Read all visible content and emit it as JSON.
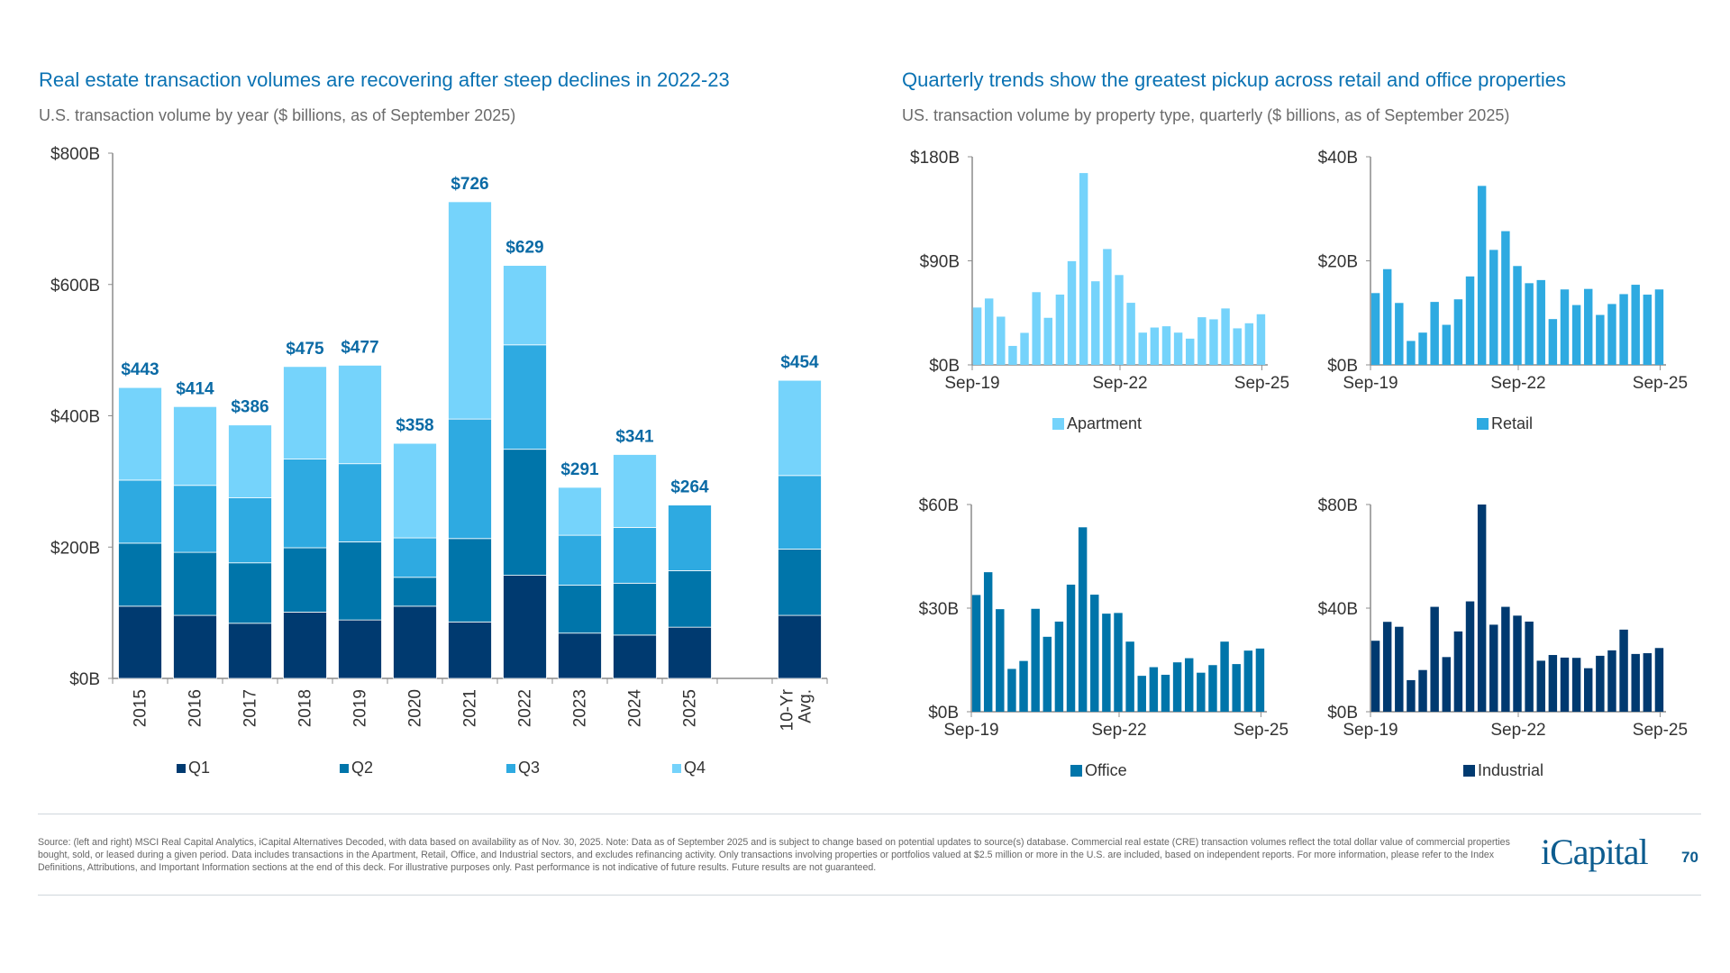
{
  "left": {
    "title": "Real estate transaction volumes are recovering after steep declines in 2022-23",
    "subtitle": "U.S. transaction volume by year ($ billions, as of September 2025)"
  },
  "right": {
    "title": "Quarterly trends show the greatest pickup across retail and office properties",
    "subtitle": "US. transaction volume by property type, quarterly ($ billions, as of September 2025)"
  },
  "chart_data": [
    {
      "type": "bar",
      "stacked": true,
      "categories": [
        "2015",
        "2016",
        "2017",
        "2018",
        "2019",
        "2020",
        "2021",
        "2022",
        "2023",
        "2024",
        "2025",
        "",
        "10-Yr Avg."
      ],
      "series": [
        {
          "name": "Q1",
          "color": "#003a70",
          "values": [
            110,
            96,
            84,
            101,
            89,
            110,
            86,
            157,
            69,
            66,
            78,
            null,
            96
          ]
        },
        {
          "name": "Q2",
          "color": "#0075aa",
          "values": [
            96,
            96,
            92,
            98,
            119,
            44,
            127,
            192,
            73,
            79,
            86,
            null,
            101
          ]
        },
        {
          "name": "Q3",
          "color": "#2eaae1",
          "values": [
            96,
            102,
            99,
            135,
            119,
            60,
            182,
            159,
            76,
            85,
            100,
            null,
            112
          ]
        },
        {
          "name": "Q4",
          "color": "#75d3fb",
          "values": [
            141,
            120,
            111,
            141,
            150,
            144,
            331,
            121,
            73,
            111,
            0,
            null,
            145
          ]
        }
      ],
      "totals": [
        "$443",
        "$414",
        "$386",
        "$475",
        "$477",
        "$358",
        "$726",
        "$629",
        "$291",
        "$341",
        "$264",
        "",
        "$454"
      ],
      "ylim": [
        0,
        800
      ],
      "yticks": [
        "$0B",
        "$200B",
        "$400B",
        "$600B",
        "$800B"
      ],
      "ytick_values": [
        0,
        200,
        400,
        600,
        800
      ],
      "legend": "bottom",
      "grid": false
    },
    {
      "type": "bar",
      "series": [
        {
          "name": "Apartment",
          "color": "#75d3fb",
          "values": [
            49.6,
            57.4,
            41.7,
            16.4,
            27.7,
            62.9,
            40.7,
            60.8,
            89.7,
            165.9,
            72.3,
            100.2,
            77.7,
            53.7,
            27.9,
            32.3,
            33.4,
            27.9,
            22.7,
            41.2,
            39.4,
            48.8,
            31.6,
            36.0,
            43.8
          ]
        }
      ],
      "xticks": [
        "Sep-19",
        "Sep-22",
        "Sep-25"
      ],
      "ylim": [
        0,
        180
      ],
      "yticks": [
        "$0B",
        "$90B",
        "$180B"
      ],
      "ytick_values": [
        0,
        90,
        180
      ],
      "legend": "bottom",
      "grid": false
    },
    {
      "type": "bar",
      "series": [
        {
          "name": "Retail",
          "color": "#2eaae1",
          "values": [
            13.8,
            18.4,
            11.9,
            4.6,
            6.2,
            12.1,
            7.7,
            12.6,
            17.0,
            34.4,
            22.1,
            25.7,
            19.0,
            15.7,
            16.3,
            8.8,
            14.5,
            11.5,
            14.6,
            9.6,
            11.7,
            13.6,
            15.4,
            13.5,
            14.5
          ]
        }
      ],
      "xticks": [
        "Sep-19",
        "Sep-22",
        "Sep-25"
      ],
      "ylim": [
        0,
        40
      ],
      "yticks": [
        "$0B",
        "$20B",
        "$40B"
      ],
      "ytick_values": [
        0,
        20,
        40
      ],
      "legend": "bottom",
      "grid": false
    },
    {
      "type": "bar",
      "series": [
        {
          "name": "Office",
          "color": "#0075aa",
          "values": [
            33.8,
            40.4,
            29.7,
            12.4,
            14.7,
            29.8,
            21.7,
            26.1,
            36.8,
            53.4,
            33.9,
            28.4,
            28.6,
            20.3,
            10.4,
            12.9,
            10.7,
            14.3,
            15.5,
            11.3,
            13.5,
            20.3,
            13.8,
            17.7,
            18.3
          ]
        }
      ],
      "xticks": [
        "Sep-19",
        "Sep-22",
        "Sep-25"
      ],
      "ylim": [
        0,
        60
      ],
      "yticks": [
        "$0B",
        "$30B",
        "$60B"
      ],
      "ytick_values": [
        0,
        30,
        60
      ],
      "legend": "bottom",
      "grid": false
    },
    {
      "type": "bar",
      "series": [
        {
          "name": "Industrial",
          "color": "#003a70",
          "values": [
            27.4,
            34.7,
            32.8,
            12.2,
            16.1,
            40.5,
            21.1,
            31.0,
            42.6,
            80.0,
            33.6,
            40.5,
            37.1,
            34.8,
            19.7,
            21.9,
            20.9,
            20.8,
            16.8,
            21.6,
            23.7,
            31.7,
            22.3,
            22.6,
            24.6
          ]
        }
      ],
      "xticks": [
        "Sep-19",
        "Sep-22",
        "Sep-25"
      ],
      "ylim": [
        0,
        80
      ],
      "yticks": [
        "$0B",
        "$40B",
        "$80B"
      ],
      "ytick_values": [
        0,
        40,
        80
      ],
      "legend": "bottom",
      "grid": false
    }
  ],
  "colors": {
    "title": "#0a72b3",
    "data_label": "#0a6aa5"
  },
  "footnote": "Source: (left and right) MSCI Real Capital Analytics, iCapital Alternatives Decoded, with data based on availability as of Nov. 30, 2025. Note: Data as of September 2025 and is subject to change based on potential updates to source(s) database. Commercial real estate (CRE) transaction volumes reflect the total dollar value of commercial properties bought, sold, or leased during a given period. Data includes transactions in the Apartment, Retail, Office, and Industrial sectors, and excludes refinancing activity. Only transactions involving properties or portfolios valued at $2.5 million or more in the U.S. are included, based on independent reports. For more information, please refer to the Index Definitions, Attributions, and Important Information sections at the end of this deck. For illustrative purposes only. Past performance is not indicative of future results. Future results are not guaranteed.",
  "logo": "iCapital",
  "page_number": "70"
}
